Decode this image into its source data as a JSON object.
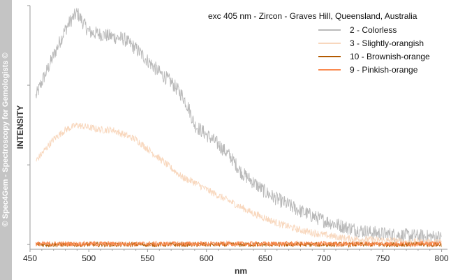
{
  "watermark": "© Spec4Gem - Spectroscopy for Gemologists ©",
  "chart_data": {
    "type": "line",
    "title": "exc 405 nm - Zircon - Graves Hill, Queensland, Australia",
    "xlabel": "nm",
    "ylabel": "INTENSITY",
    "xlim": [
      450,
      805
    ],
    "ylim": [
      -0.02,
      1.0
    ],
    "x_ticks": [
      450,
      500,
      550,
      600,
      650,
      700,
      750,
      800
    ],
    "y_tick_labels_shown": false,
    "grid": false,
    "legend_position": "top-right",
    "series": [
      {
        "name": "2 - Colorless",
        "color": "#b9b9b9",
        "noise": 0.03,
        "x": [
          455,
          460,
          470,
          480,
          485,
          490,
          495,
          500,
          510,
          520,
          530,
          540,
          550,
          560,
          570,
          580,
          585,
          590,
          600,
          610,
          620,
          630,
          640,
          650,
          660,
          680,
          700,
          720,
          740,
          760,
          780,
          800
        ],
        "y": [
          0.62,
          0.68,
          0.79,
          0.9,
          0.94,
          0.97,
          0.93,
          0.89,
          0.88,
          0.87,
          0.86,
          0.82,
          0.77,
          0.72,
          0.68,
          0.62,
          0.57,
          0.5,
          0.46,
          0.42,
          0.37,
          0.3,
          0.26,
          0.22,
          0.19,
          0.14,
          0.1,
          0.07,
          0.05,
          0.04,
          0.035,
          0.03
        ]
      },
      {
        "name": "3 - Slightly-orangish",
        "color": "#f8d7bd",
        "noise": 0.015,
        "x": [
          455,
          460,
          470,
          480,
          490,
          500,
          510,
          520,
          530,
          540,
          550,
          560,
          570,
          580,
          590,
          600,
          620,
          640,
          660,
          680,
          700,
          720,
          740,
          760,
          780,
          800
        ],
        "y": [
          0.35,
          0.38,
          0.44,
          0.48,
          0.5,
          0.49,
          0.48,
          0.48,
          0.46,
          0.44,
          0.4,
          0.36,
          0.32,
          0.28,
          0.26,
          0.23,
          0.18,
          0.13,
          0.09,
          0.06,
          0.04,
          0.025,
          0.02,
          0.015,
          0.01,
          0.01
        ]
      },
      {
        "name": "10 - Brownish-orange",
        "color": "#b35a00",
        "noise": 0.01,
        "x": [
          455,
          800
        ],
        "y": [
          0.0,
          0.0
        ]
      },
      {
        "name": "9 - Pinkish-orange",
        "color": "#fa8a50",
        "noise": 0.01,
        "x": [
          455,
          800
        ],
        "y": [
          0.003,
          0.003
        ]
      }
    ]
  }
}
